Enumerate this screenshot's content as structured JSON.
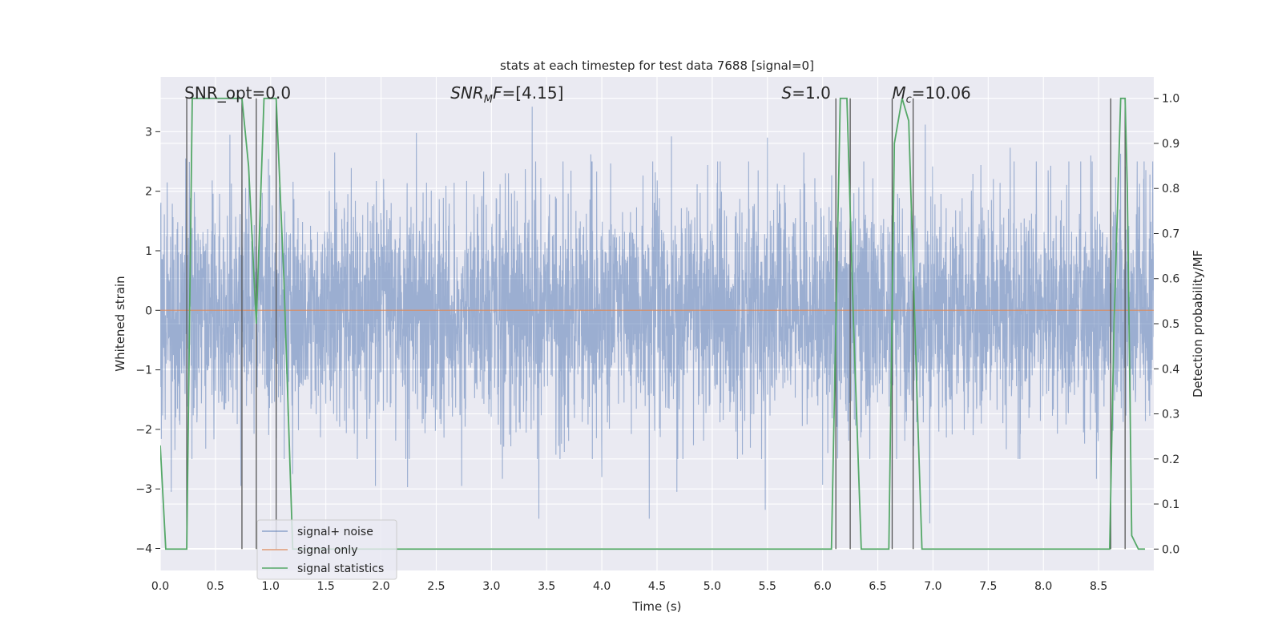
{
  "chart_data": {
    "type": "line",
    "title": "stats at each timestep for test data 7688 [signal=0]",
    "xlabel": "Time (s)",
    "ylabel_left": "Whitened strain",
    "ylabel_right": "Detection probability/MF",
    "xlim": [
      0,
      9
    ],
    "ylim_left": [
      -4.37,
      3.92
    ],
    "ylim_right": [
      -0.0475,
      1.0475
    ],
    "xticks": [
      0.0,
      0.5,
      1.0,
      1.5,
      2.0,
      2.5,
      3.0,
      3.5,
      4.0,
      4.5,
      5.0,
      5.5,
      6.0,
      6.5,
      7.0,
      7.5,
      8.0,
      8.5
    ],
    "xtick_labels": [
      "0.0",
      "0.5",
      "1.0",
      "1.5",
      "2.0",
      "2.5",
      "3.0",
      "3.5",
      "4.0",
      "4.5",
      "5.0",
      "5.5",
      "6.0",
      "6.5",
      "7.0",
      "7.5",
      "8.0",
      "8.5"
    ],
    "yticks_left": [
      3,
      2,
      1,
      0,
      -1,
      -2,
      -3,
      -4
    ],
    "ytick_labels_left": [
      "3",
      "2",
      "1",
      "0",
      "−1",
      "−2",
      "−3",
      "−4"
    ],
    "yticks_right": [
      1.0,
      0.9,
      0.8,
      0.7,
      0.6,
      0.5,
      0.4,
      0.3,
      0.2,
      0.1,
      0.0
    ],
    "ytick_labels_right": [
      "1.0",
      "0.9",
      "0.8",
      "0.7",
      "0.6",
      "0.5",
      "0.4",
      "0.3",
      "0.2",
      "0.1",
      "0.0"
    ],
    "annotations": [
      {
        "id": "snr-opt",
        "html": "SNR_opt=0.0",
        "x": 0.19
      },
      {
        "id": "snr-mf",
        "html": "<tspan font-style='italic'>SNR</tspan><tspan font-style='italic' font-size='13' dy='5'>M</tspan><tspan font-style='italic' dy='-5'>F</tspan>=[4.15]",
        "x": 2.6
      },
      {
        "id": "s-value",
        "html": "<tspan font-style='italic'>S</tspan>=1.0",
        "x": 5.6
      },
      {
        "id": "chirp-mass",
        "html": "<tspan font-style='italic'>M</tspan><tspan font-style='italic' font-size='13' dy='5'>c</tspan><tspan dy='-5'>=10.06</tspan>",
        "x": 6.6
      }
    ],
    "series": [
      {
        "name": "signal+ noise",
        "color": "#4c72b0",
        "opacity": 0.5,
        "axis": "left",
        "kind": "noise",
        "sample_rate": 512,
        "extreme_points": [
          [
            0.23,
            2.55
          ],
          [
            0.47,
            2.18
          ],
          [
            0.63,
            2.95
          ],
          [
            0.98,
            2.54
          ],
          [
            1.58,
            2.65
          ],
          [
            2.32,
            2.98
          ],
          [
            2.93,
            2.33
          ],
          [
            3.37,
            3.42
          ],
          [
            3.9,
            2.62
          ],
          [
            4.63,
            2.92
          ],
          [
            5.5,
            2.9
          ],
          [
            5.83,
            2.65
          ],
          [
            6.93,
            3.12
          ],
          [
            7.7,
            2.73
          ],
          [
            8.43,
            2.6
          ],
          [
            8.7,
            2.63
          ],
          [
            0.1,
            -3.05
          ],
          [
            0.73,
            -2.95
          ],
          [
            1.2,
            -2.75
          ],
          [
            1.95,
            -2.95
          ],
          [
            2.24,
            -2.97
          ],
          [
            2.73,
            -2.95
          ],
          [
            3.1,
            -2.83
          ],
          [
            3.43,
            -3.5
          ],
          [
            4.0,
            -2.8
          ],
          [
            4.43,
            -3.5
          ],
          [
            4.68,
            -3.05
          ],
          [
            5.48,
            -3.35
          ],
          [
            6.0,
            -2.93
          ],
          [
            6.97,
            -3.58
          ],
          [
            8.48,
            -2.83
          ]
        ]
      },
      {
        "name": "signal only",
        "color": "#dd8452",
        "opacity": 0.8,
        "axis": "left",
        "kind": "line",
        "x": [
          0,
          9
        ],
        "y": [
          0,
          0
        ]
      },
      {
        "name": "signal statistics",
        "color": "#55a868",
        "opacity": 1,
        "axis": "right",
        "kind": "line",
        "x": [
          0.0,
          0.05,
          0.24,
          0.29,
          0.58,
          0.67,
          0.74,
          0.8,
          0.87,
          0.94,
          1.05,
          1.12,
          1.2,
          6.08,
          6.16,
          6.22,
          6.28,
          6.35,
          6.42,
          6.6,
          6.65,
          6.72,
          6.78,
          6.86,
          6.9,
          8.6,
          8.64,
          8.7,
          8.74,
          8.76,
          8.8,
          8.86,
          8.92
        ],
        "y": [
          0.23,
          0.0,
          0.0,
          1.0,
          1.0,
          1.0,
          1.0,
          0.85,
          0.5,
          1.0,
          1.0,
          0.6,
          0.0,
          0.0,
          1.0,
          1.0,
          0.5,
          0.0,
          0.0,
          0.0,
          0.9,
          1.0,
          0.95,
          0.3,
          0.0,
          0.0,
          0.5,
          1.0,
          1.0,
          0.8,
          0.03,
          0.0,
          0.0
        ]
      }
    ],
    "event_markers": [
      0.24,
      0.74,
      0.87,
      1.05,
      6.12,
      6.25,
      6.63,
      6.82,
      8.61,
      8.74
    ],
    "legend": {
      "position": "lower-left",
      "entries": [
        "signal+ noise",
        "signal only",
        "signal statistics"
      ]
    },
    "grid": true
  },
  "colors": {
    "axes_bg": "#eaeaf2",
    "grid": "#ffffff",
    "noise": "#4c72b0",
    "signal": "#dd8452",
    "statistics": "#55a868",
    "event_marker": "#555555"
  }
}
